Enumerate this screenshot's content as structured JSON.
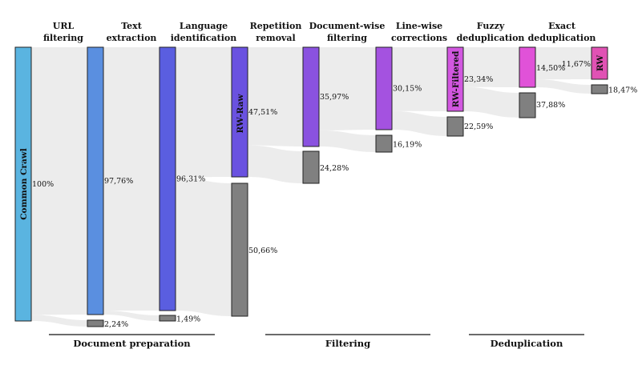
{
  "stages": [
    [
      "URL",
      "filtering"
    ],
    [
      "Text",
      "extraction"
    ],
    [
      "Language",
      "identification"
    ],
    [
      "Repetition",
      "removal"
    ],
    [
      "Document-wise",
      "filtering"
    ],
    [
      "Line-wise",
      "corrections"
    ],
    [
      "Fuzzy",
      "deduplication"
    ],
    [
      "Exact",
      "deduplication"
    ]
  ],
  "groups": [
    "Document preparation",
    "Filtering",
    "Deduplication"
  ],
  "node_names": {
    "source": "Common Crawl",
    "raw": "RW-Raw",
    "filtered": "RW-Filtered",
    "final": "RW"
  },
  "colors": {
    "common_crawl": "#5ab4e0",
    "text_extraction": "#5a8fe0",
    "language_id": "#5a5ee0",
    "rw_raw": "#6a52e0",
    "doc_filtering": "#8a52e0",
    "line_wise": "#a452e0",
    "rw_filtered": "#d257e0",
    "fuzzy": "#e052d8",
    "rw": "#e052b4",
    "removed": "#808080",
    "flow": "#ececec"
  },
  "chart_data": {
    "type": "sankey",
    "kept_percent": [
      100,
      97.76,
      96.31,
      47.51,
      35.97,
      30.15,
      23.34,
      14.5,
      11.67
    ],
    "removed_percent": [
      2.24,
      1.49,
      50.66,
      24.28,
      16.19,
      22.59,
      37.88,
      18.47
    ],
    "kept_labels": [
      "100%",
      "97,76%",
      "96,31%",
      "47,51%",
      "35,97%",
      "30,15%",
      "23,34%",
      "14,50%",
      "11,67%"
    ],
    "removed_labels": [
      "2,24%",
      "1,49%",
      "50,66%",
      "24,28%",
      "16,19%",
      "22,59%",
      "37,88%",
      "18,47%"
    ]
  }
}
